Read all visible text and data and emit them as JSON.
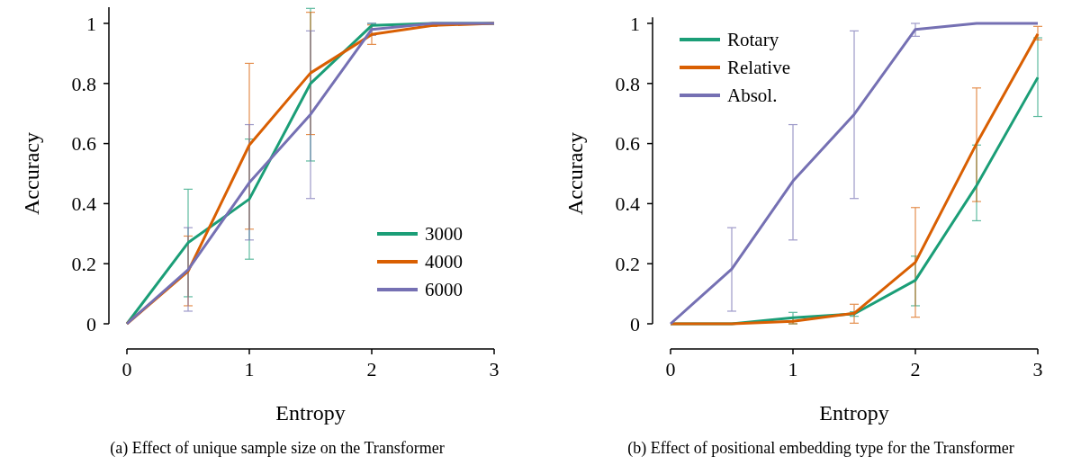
{
  "chart_data": [
    {
      "type": "line",
      "xlabel": "Entropy",
      "ylabel": "Accuracy",
      "x": [
        0,
        0.5,
        1,
        1.5,
        2,
        2.5,
        3
      ],
      "xlim": [
        0,
        3
      ],
      "xticks": [
        0,
        1,
        2,
        3
      ],
      "ylim": [
        0,
        1.06
      ],
      "yticks": [
        0,
        0.2,
        0.4,
        0.6,
        0.8,
        1
      ],
      "legend": "bottom right",
      "grid": false,
      "annotations": [
        "(a) Effect of unique sample size on the Transformer"
      ],
      "series": [
        {
          "name": "3000",
          "color": "#1b9e77",
          "values": [
            0,
            0.27,
            0.415,
            0.8,
            0.993,
            1.0,
            1.0
          ],
          "errors": [
            null,
            [
              0.09,
              0.448
            ],
            [
              0.215,
              0.615
            ],
            [
              0.542,
              1.05
            ],
            [
              0.98,
              1.0
            ],
            null,
            null
          ]
        },
        {
          "name": "4000",
          "color": "#d95f02",
          "values": [
            0,
            0.175,
            0.595,
            0.835,
            0.963,
            0.993,
            1.0
          ],
          "errors": [
            null,
            [
              0.06,
              0.292
            ],
            [
              0.315,
              0.867
            ],
            [
              0.63,
              1.037
            ],
            [
              0.93,
              0.995
            ],
            [
              0.99,
              1.0
            ],
            null
          ]
        },
        {
          "name": "6000",
          "color": "#7570b3",
          "values": [
            0,
            0.18,
            0.47,
            0.697,
            0.98,
            1.0,
            1.0
          ],
          "errors": [
            null,
            [
              0.042,
              0.32
            ],
            [
              0.279,
              0.663
            ],
            [
              0.417,
              0.975
            ],
            [
              0.96,
              1.0
            ],
            null,
            null
          ]
        }
      ]
    },
    {
      "type": "line",
      "xlabel": "Entropy",
      "ylabel": "Accuracy",
      "x": [
        0,
        0.5,
        1,
        1.5,
        2,
        2.5,
        3
      ],
      "xlim": [
        0,
        3
      ],
      "xticks": [
        0,
        1,
        2,
        3
      ],
      "ylim": [
        0,
        1.02
      ],
      "yticks": [
        0,
        0.2,
        0.4,
        0.6,
        0.8,
        1
      ],
      "legend": "top left",
      "grid": false,
      "annotations": [
        "(b) Effect of positional embedding type for the Transformer"
      ],
      "series": [
        {
          "name": "Rotary",
          "color": "#1b9e77",
          "values": [
            0,
            0,
            0.02,
            0.033,
            0.145,
            0.46,
            0.82
          ],
          "errors": [
            null,
            null,
            [
              0,
              0.038
            ],
            [
              0.025,
              0.04
            ],
            [
              0.06,
              0.225
            ],
            [
              0.343,
              0.595
            ],
            [
              0.69,
              0.952
            ]
          ]
        },
        {
          "name": "Relative",
          "color": "#d95f02",
          "values": [
            0,
            0,
            0.008,
            0.035,
            0.205,
            0.6,
            0.965
          ],
          "errors": [
            null,
            null,
            [
              0,
              0.02
            ],
            [
              0.002,
              0.065
            ],
            [
              0.022,
              0.387
            ],
            [
              0.407,
              0.785
            ],
            [
              0.945,
              0.99
            ]
          ]
        },
        {
          "name": "Absol.",
          "color": "#7570b3",
          "values": [
            0,
            0.182,
            0.475,
            0.697,
            0.98,
            1.0,
            1.0
          ],
          "errors": [
            null,
            [
              0.042,
              0.32
            ],
            [
              0.279,
              0.663
            ],
            [
              0.417,
              0.975
            ],
            [
              0.957,
              1.0
            ],
            null,
            null
          ]
        }
      ]
    }
  ]
}
